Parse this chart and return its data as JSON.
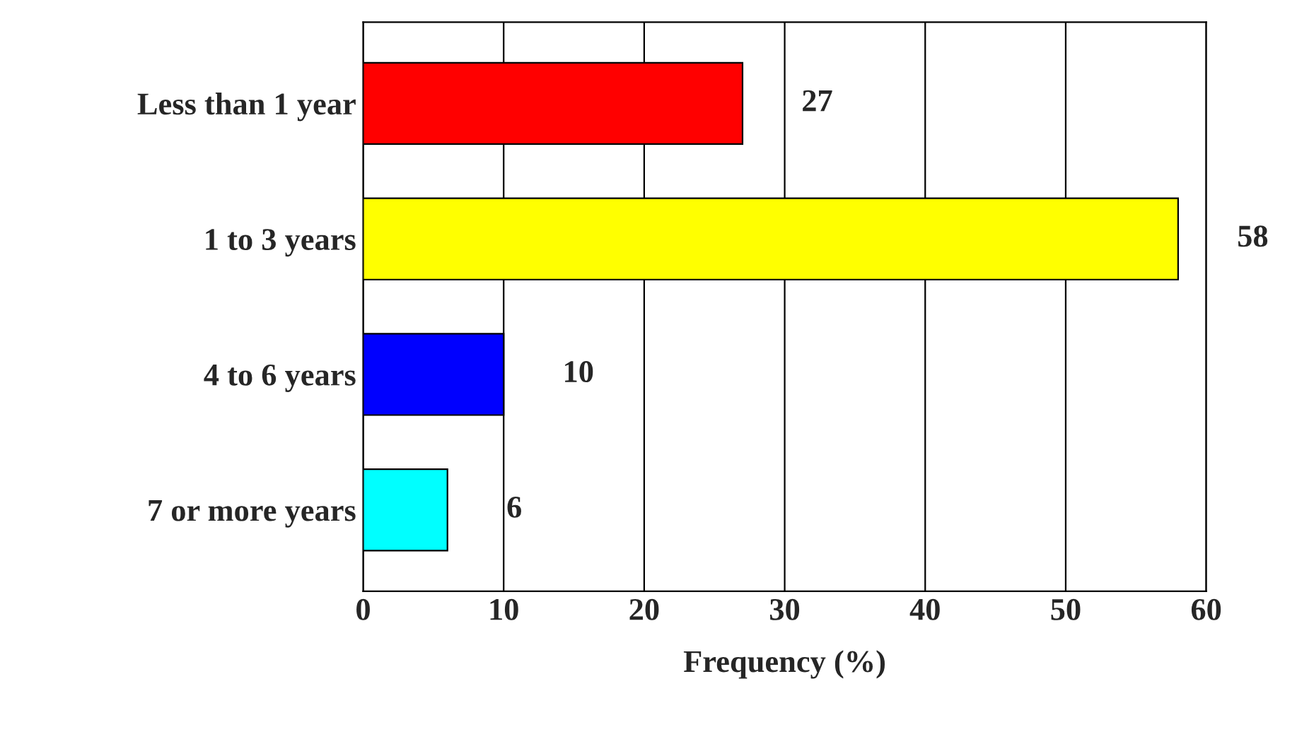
{
  "chart_data": {
    "type": "bar",
    "orientation": "horizontal",
    "xlabel": "Frequency (%)",
    "categories": [
      "Less than 1 year",
      "1 to 3 years",
      "4 to 6 years",
      "7 or more years"
    ],
    "values": [
      27,
      58,
      10,
      6
    ],
    "colors": [
      "#ff0000",
      "#ffff00",
      "#0000ff",
      "#00ffff"
    ],
    "xlim": [
      0,
      60
    ],
    "xticks": [
      0,
      10,
      20,
      30,
      40,
      50,
      60
    ],
    "grid": "x",
    "data_labels": true
  }
}
